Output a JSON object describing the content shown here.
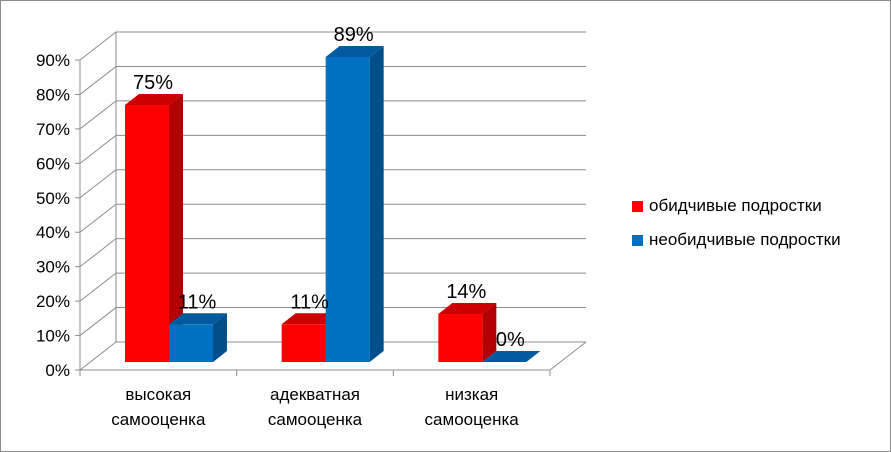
{
  "chart_data": {
    "type": "bar",
    "categories": [
      [
        "высокая",
        "самооценка"
      ],
      [
        "адекватная",
        "самооценка"
      ],
      [
        "низкая",
        "самооценка"
      ]
    ],
    "series": [
      {
        "name": "обидчивые подростки",
        "values": [
          75,
          11,
          14
        ],
        "labels": [
          "75%",
          "11%",
          "14%"
        ],
        "color": "#ff0000",
        "side_color": "#b30000",
        "top_color": "#cc0000"
      },
      {
        "name": "необидчивые подростки",
        "values": [
          11,
          89,
          0
        ],
        "labels": [
          "11%",
          "89%",
          "0%"
        ],
        "color": "#0070c0",
        "side_color": "#004f8a",
        "top_color": "#005a9e"
      }
    ],
    "yticks": [
      "0%",
      "10%",
      "20%",
      "30%",
      "40%",
      "50%",
      "60%",
      "70%",
      "80%",
      "90%"
    ],
    "ylim": [
      0,
      90
    ],
    "grid": true,
    "three_d": true,
    "legend_position": "right"
  }
}
